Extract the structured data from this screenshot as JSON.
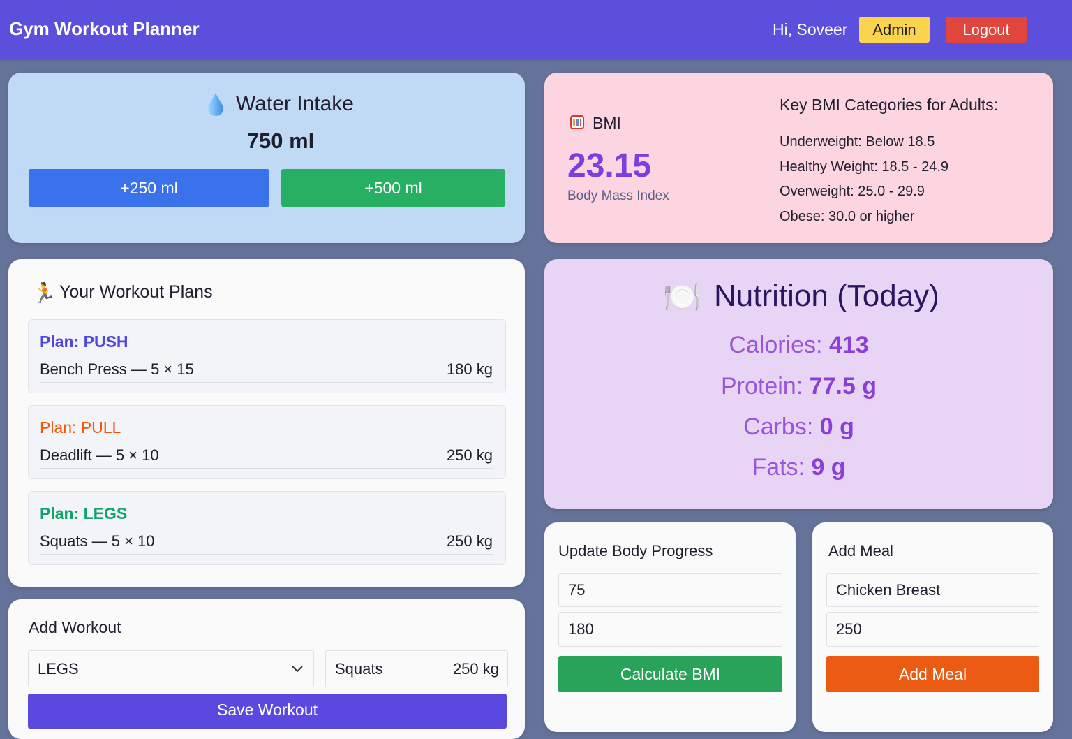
{
  "header": {
    "title": "Gym Workout Planner",
    "greeting": "Hi, Soveer",
    "admin_label": "Admin",
    "logout_label": "Logout"
  },
  "water": {
    "icon": "droplet-icon",
    "title": "Water Intake",
    "amount": "750 ml",
    "add250_label": "+250 ml",
    "add500_label": "+500 ml"
  },
  "bmi": {
    "icon": "abacus-icon",
    "label": "BMI",
    "value": "23.15",
    "caption": "Body Mass Index",
    "categories_title": "Key BMI Categories for Adults:",
    "categories": [
      "Underweight: Below 18.5",
      "Healthy Weight: 18.5 - 24.9",
      "Overweight: 25.0 - 29.9",
      "Obese: 30.0 or higher"
    ]
  },
  "plans": {
    "icon": "runner-icon",
    "title": "Your Workout Plans",
    "items": [
      {
        "name": "Plan: PUSH",
        "exercise": "Bench Press — 5 × 15",
        "weight": "180 kg",
        "color": "#4f46e5"
      },
      {
        "name": "Plan: PULL",
        "exercise": "Deadlift — 5 × 10",
        "weight": "250 kg",
        "color": "#ea580c"
      },
      {
        "name": "Plan: LEGS",
        "exercise": "Squats — 5 × 10",
        "weight": "250 kg",
        "color": "#10a36a"
      }
    ]
  },
  "nutrition": {
    "icon": "plate-cutlery-icon",
    "title": "Nutrition (Today)",
    "calories_label": "Calories: ",
    "calories": "413",
    "protein_label": "Protein: ",
    "protein": "77.5 g",
    "carbs_label": "Carbs: ",
    "carbs": "0 g",
    "fats_label": "Fats: ",
    "fats": "9 g"
  },
  "add_workout": {
    "title": "Add Workout",
    "plan_select": "LEGS",
    "exercise_value": "Squats",
    "weight_value": "250 kg",
    "save_label": "Save Workout"
  },
  "body_progress": {
    "title": "Update Body Progress",
    "weight_value": "75",
    "height_value": "180",
    "calc_label": "Calculate BMI"
  },
  "add_meal": {
    "title": "Add Meal",
    "food_value": "Chicken Breast",
    "grams_value": "250",
    "add_label": "Add Meal"
  }
}
